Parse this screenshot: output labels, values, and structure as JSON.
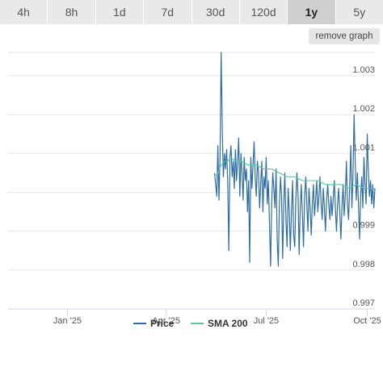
{
  "tabs": [
    {
      "label": "4h",
      "active": false
    },
    {
      "label": "8h",
      "active": false
    },
    {
      "label": "1d",
      "active": false
    },
    {
      "label": "7d",
      "active": false
    },
    {
      "label": "30d",
      "active": false
    },
    {
      "label": "120d",
      "active": false
    },
    {
      "label": "1y",
      "active": true
    },
    {
      "label": "5y",
      "active": false
    }
  ],
  "remove_graph_label": "remove graph",
  "chart_data": {
    "type": "line",
    "xlim": [
      "2024-11-08",
      "2025-10-08"
    ],
    "ylim": [
      0.997,
      1.0036
    ],
    "x_ticks": [
      {
        "date": "2025-01-01",
        "label": "Jan '25"
      },
      {
        "date": "2025-04-01",
        "label": "Apr '25"
      },
      {
        "date": "2025-07-01",
        "label": "Jul '25"
      },
      {
        "date": "2025-10-01",
        "label": "Oct '25"
      }
    ],
    "y_ticks": [
      {
        "value": 0.997,
        "label": "0.997"
      },
      {
        "value": 0.998,
        "label": "0.998"
      },
      {
        "value": 0.999,
        "label": "0.999"
      },
      {
        "value": 1.0,
        "label": ""
      },
      {
        "value": 1.001,
        "label": "1.001"
      },
      {
        "value": 1.002,
        "label": "1.002"
      },
      {
        "value": 1.003,
        "label": "1.003"
      }
    ],
    "grid": true,
    "legend_position": "bottom",
    "series": [
      {
        "name": "Price",
        "color": "#2e6da4",
        "points": [
          [
            "2025-05-15",
            1.0005
          ],
          [
            "2025-05-16",
            1.0002
          ],
          [
            "2025-05-17",
            0.9999
          ],
          [
            "2025-05-18",
            1.0012
          ],
          [
            "2025-05-19",
            0.9998
          ],
          [
            "2025-05-20",
            1.0009
          ],
          [
            "2025-05-21",
            1.0036
          ],
          [
            "2025-05-22",
            1.0016
          ],
          [
            "2025-05-23",
            1.0004
          ],
          [
            "2025-05-24",
            1.001
          ],
          [
            "2025-05-25",
            1.0006
          ],
          [
            "2025-05-26",
            1.0011
          ],
          [
            "2025-05-27",
            1.0002
          ],
          [
            "2025-05-28",
            0.9985
          ],
          [
            "2025-05-29",
            1.0009
          ],
          [
            "2025-05-30",
            1.0012
          ],
          [
            "2025-05-31",
            1.0004
          ],
          [
            "2025-06-01",
            1.0008
          ],
          [
            "2025-06-02",
            1.0001
          ],
          [
            "2025-06-03",
            1.0011
          ],
          [
            "2025-06-04",
            1.0003
          ],
          [
            "2025-06-05",
            1.0008
          ],
          [
            "2025-06-06",
            1.0014
          ],
          [
            "2025-06-07",
            0.9999
          ],
          [
            "2025-06-08",
            1.001
          ],
          [
            "2025-06-09",
            1.0005
          ],
          [
            "2025-06-10",
            0.9998
          ],
          [
            "2025-06-11",
            1.0009
          ],
          [
            "2025-06-12",
            1.0003
          ],
          [
            "2025-06-13",
            1.0006
          ],
          [
            "2025-06-14",
            0.9995
          ],
          [
            "2025-06-15",
            1.0003
          ],
          [
            "2025-06-16",
            0.9982
          ],
          [
            "2025-06-17",
            1.0009
          ],
          [
            "2025-06-18",
            1.0001
          ],
          [
            "2025-06-19",
            1.0007
          ],
          [
            "2025-06-20",
            1.0013
          ],
          [
            "2025-06-21",
            1.0004
          ],
          [
            "2025-06-22",
            0.9999
          ],
          [
            "2025-06-23",
            1.0008
          ],
          [
            "2025-06-24",
            1.0005
          ],
          [
            "2025-06-25",
            0.9996
          ],
          [
            "2025-06-26",
            1.0002
          ],
          [
            "2025-06-27",
            1.0008
          ],
          [
            "2025-06-28",
            0.9995
          ],
          [
            "2025-06-29",
            1.0004
          ],
          [
            "2025-06-30",
            1.0001
          ],
          [
            "2025-07-01",
            1.0009
          ],
          [
            "2025-07-02",
            0.9997
          ],
          [
            "2025-07-03",
            1.0003
          ],
          [
            "2025-07-04",
            0.9992
          ],
          [
            "2025-07-05",
            0.9981
          ],
          [
            "2025-07-06",
            0.9997
          ],
          [
            "2025-07-07",
            1.0005
          ],
          [
            "2025-07-08",
            1.0001
          ],
          [
            "2025-07-09",
            0.9996
          ],
          [
            "2025-07-10",
            1.0006
          ],
          [
            "2025-07-11",
            0.9988
          ],
          [
            "2025-07-12",
            0.9981
          ],
          [
            "2025-07-13",
            0.9996
          ],
          [
            "2025-07-14",
            1.0004
          ],
          [
            "2025-07-15",
            0.9999
          ],
          [
            "2025-07-16",
            0.9983
          ],
          [
            "2025-07-17",
            0.9997
          ],
          [
            "2025-07-18",
            1.0005
          ],
          [
            "2025-07-19",
            0.9993
          ],
          [
            "2025-07-20",
            0.9986
          ],
          [
            "2025-07-21",
            1.0001
          ],
          [
            "2025-07-22",
            0.9995
          ],
          [
            "2025-07-23",
            0.9985
          ],
          [
            "2025-07-24",
            0.9995
          ],
          [
            "2025-07-25",
            1.0003
          ],
          [
            "2025-07-26",
            0.9989
          ],
          [
            "2025-07-27",
            0.9986
          ],
          [
            "2025-07-28",
            0.9998
          ],
          [
            "2025-07-29",
            1.0005
          ],
          [
            "2025-07-30",
            0.9999
          ],
          [
            "2025-07-31",
            0.9984
          ],
          [
            "2025-08-01",
            0.9996
          ],
          [
            "2025-08-02",
            1.0002
          ],
          [
            "2025-08-03",
            0.9994
          ],
          [
            "2025-08-04",
            0.9986
          ],
          [
            "2025-08-05",
            0.9999
          ],
          [
            "2025-08-06",
            1.0004
          ],
          [
            "2025-08-07",
            0.9997
          ],
          [
            "2025-08-08",
            0.999
          ],
          [
            "2025-08-09",
            1.0001
          ],
          [
            "2025-08-10",
            0.9996
          ],
          [
            "2025-08-11",
            0.9989
          ],
          [
            "2025-08-12",
            0.9997
          ],
          [
            "2025-08-13",
            1.0002
          ],
          [
            "2025-08-14",
            0.9994
          ],
          [
            "2025-08-15",
            0.9998
          ],
          [
            "2025-08-16",
            1.0003
          ],
          [
            "2025-08-17",
            0.9995
          ],
          [
            "2025-08-18",
            0.9999
          ],
          [
            "2025-08-19",
            1.0004
          ],
          [
            "2025-08-20",
            0.9997
          ],
          [
            "2025-08-21",
            0.9993
          ],
          [
            "2025-08-22",
            1.0001
          ],
          [
            "2025-08-23",
            0.9996
          ],
          [
            "2025-08-24",
            0.999
          ],
          [
            "2025-08-25",
            0.9998
          ],
          [
            "2025-08-26",
            1.0002
          ],
          [
            "2025-08-27",
            0.9997
          ],
          [
            "2025-08-28",
            0.9993
          ],
          [
            "2025-08-29",
            0.9999
          ],
          [
            "2025-08-30",
            0.9994
          ],
          [
            "2025-08-31",
            0.9998
          ],
          [
            "2025-09-01",
            1.0003
          ],
          [
            "2025-09-02",
            0.9996
          ],
          [
            "2025-09-03",
            0.999
          ],
          [
            "2025-09-04",
            0.9997
          ],
          [
            "2025-09-05",
            1.0001
          ],
          [
            "2025-09-06",
            0.9995
          ],
          [
            "2025-09-07",
            0.9988
          ],
          [
            "2025-09-08",
            0.9996
          ],
          [
            "2025-09-09",
            1.0002
          ],
          [
            "2025-09-10",
            0.9994
          ],
          [
            "2025-09-11",
            0.9999
          ],
          [
            "2025-09-12",
            1.0008
          ],
          [
            "2025-09-13",
            0.9997
          ],
          [
            "2025-09-14",
            0.9993
          ],
          [
            "2025-09-15",
            1.0001
          ],
          [
            "2025-09-16",
            1.0012
          ],
          [
            "2025-09-17",
            0.9996
          ],
          [
            "2025-09-18",
            1.0004
          ],
          [
            "2025-09-19",
            1.002
          ],
          [
            "2025-09-20",
            1.0009
          ],
          [
            "2025-09-21",
            0.9998
          ],
          [
            "2025-09-22",
            1.0005
          ],
          [
            "2025-09-23",
            0.9997
          ],
          [
            "2025-09-24",
            0.9988
          ],
          [
            "2025-09-25",
            0.9999
          ],
          [
            "2025-09-26",
            1.0004
          ],
          [
            "2025-09-27",
            0.9996
          ],
          [
            "2025-09-28",
            1.0009
          ],
          [
            "2025-09-29",
            1.0002
          ],
          [
            "2025-09-30",
            0.9997
          ],
          [
            "2025-10-01",
            1.0015
          ],
          [
            "2025-10-02",
            1.0006
          ],
          [
            "2025-10-03",
            0.9999
          ],
          [
            "2025-10-04",
            1.0003
          ],
          [
            "2025-10-05",
            0.9997
          ],
          [
            "2025-10-06",
            1.0002
          ],
          [
            "2025-10-07",
            0.9996
          ],
          [
            "2025-10-08",
            1.0001
          ]
        ]
      },
      {
        "name": "SMA 200",
        "color": "#59c99a",
        "points": [
          [
            "2025-05-15",
            1.0004
          ],
          [
            "2025-05-18",
            1.0005
          ],
          [
            "2025-05-21",
            1.0007
          ],
          [
            "2025-05-24",
            1.0008
          ],
          [
            "2025-05-27",
            1.0008
          ],
          [
            "2025-05-30",
            1.0009
          ],
          [
            "2025-06-03",
            1.0008
          ],
          [
            "2025-06-08",
            1.0008
          ],
          [
            "2025-06-15",
            1.0007
          ],
          [
            "2025-06-22",
            1.0007
          ],
          [
            "2025-06-29",
            1.0006
          ],
          [
            "2025-07-06",
            1.0006
          ],
          [
            "2025-07-13",
            1.0005
          ],
          [
            "2025-07-20",
            1.0004
          ],
          [
            "2025-07-27",
            1.0004
          ],
          [
            "2025-08-03",
            1.0003
          ],
          [
            "2025-08-10",
            1.0003
          ],
          [
            "2025-08-17",
            1.0003
          ],
          [
            "2025-08-24",
            1.0002
          ],
          [
            "2025-08-31",
            1.0002
          ],
          [
            "2025-09-07",
            1.0002
          ],
          [
            "2025-09-14",
            1.0001
          ],
          [
            "2025-09-21",
            1.0002
          ],
          [
            "2025-09-28",
            1.0001
          ],
          [
            "2025-10-08",
            1.0001
          ]
        ]
      }
    ]
  }
}
